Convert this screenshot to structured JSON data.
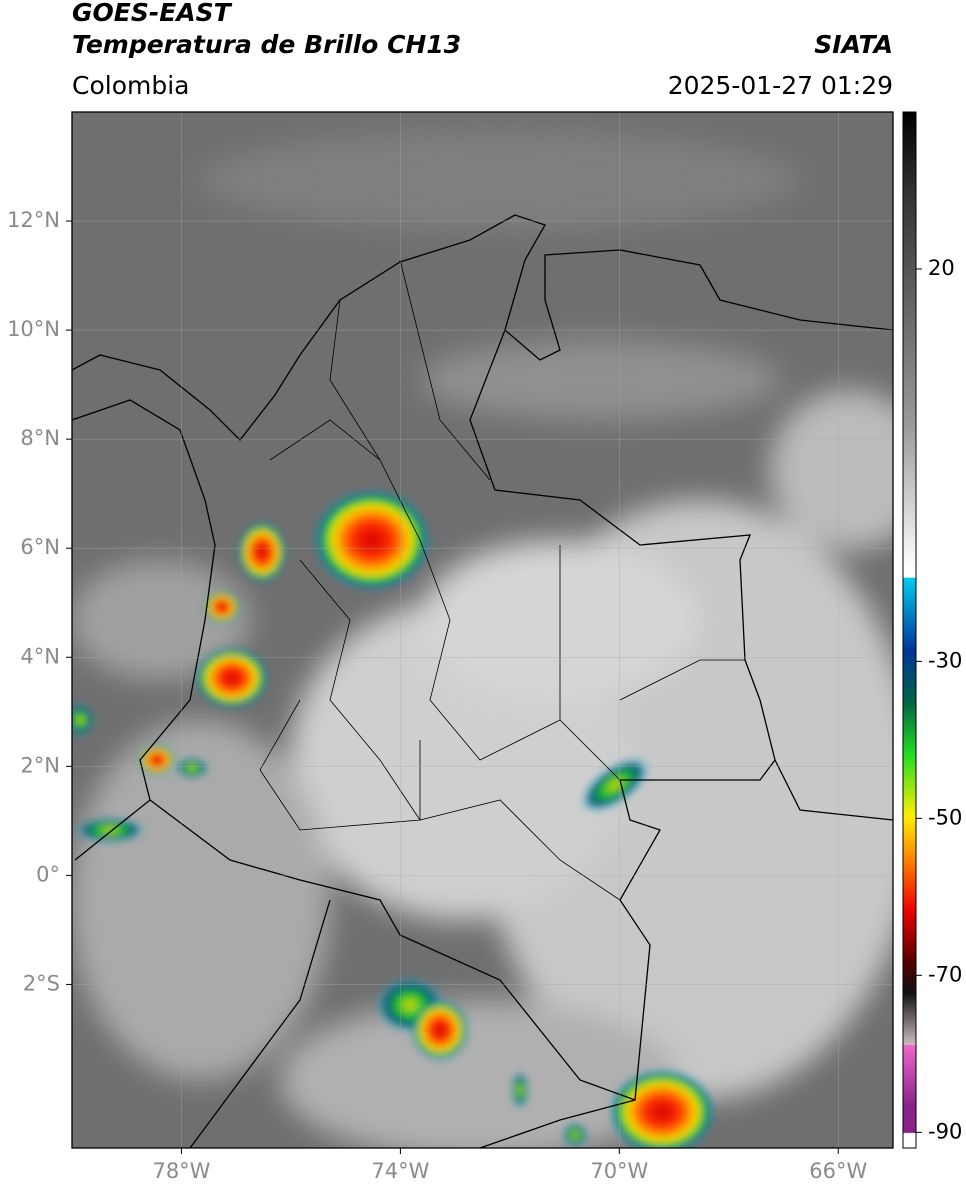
{
  "header": {
    "title": "GOES-EAST",
    "subtitle": "Temperatura de Brillo CH13",
    "source": "SIATA",
    "region": "Colombia",
    "datetime": "2025-01-27 01:29"
  },
  "map": {
    "xlim": [
      -80,
      -65
    ],
    "ylim": [
      -5,
      14
    ],
    "xticks": [
      {
        "value": -78,
        "label": "78°W"
      },
      {
        "value": -74,
        "label": "74°W"
      },
      {
        "value": -70,
        "label": "70°W"
      },
      {
        "value": -66,
        "label": "66°W"
      }
    ],
    "yticks": [
      {
        "value": 12,
        "label": "12°N"
      },
      {
        "value": 10,
        "label": "10°N"
      },
      {
        "value": 8,
        "label": "8°N"
      },
      {
        "value": 6,
        "label": "6°N"
      },
      {
        "value": 4,
        "label": "4°N"
      },
      {
        "value": 2,
        "label": "2°N"
      },
      {
        "value": 0,
        "label": "0°"
      },
      {
        "value": -2,
        "label": "2°S"
      }
    ],
    "grid": true
  },
  "colorbar": {
    "lim": [
      -92,
      40
    ],
    "ticks": [
      20,
      -30,
      -50,
      -70,
      -90
    ]
  }
}
